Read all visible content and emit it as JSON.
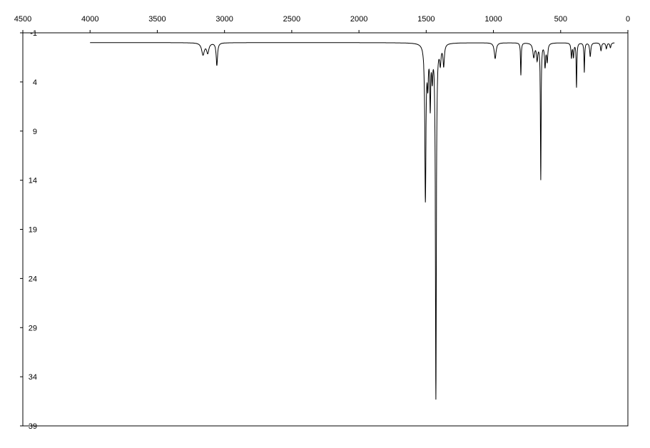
{
  "chart_data": {
    "type": "line",
    "title": "",
    "xlabel": "",
    "ylabel": "",
    "xlim": [
      4500,
      0
    ],
    "ylim": [
      -1,
      39
    ],
    "x_reversed": true,
    "y_inverted": true,
    "grid": false,
    "legend": "none",
    "line_color": "#000000",
    "x_ticks": [
      "4500",
      "4000",
      "3500",
      "3000",
      "2500",
      "2000",
      "1500",
      "1000",
      "500",
      "0"
    ],
    "y_ticks": [
      "-1",
      "4",
      "9",
      "14",
      "19",
      "24",
      "29",
      "34",
      "39"
    ],
    "x_range": [
      4000,
      100
    ],
    "baseline": 0,
    "peaks": [
      {
        "x": 3160,
        "y": 1.2,
        "w": 12
      },
      {
        "x": 3125,
        "y": 1.0,
        "w": 10
      },
      {
        "x": 3057,
        "y": 2.3,
        "w": 6
      },
      {
        "x": 1506,
        "y": 15.8,
        "w": 5
      },
      {
        "x": 1488,
        "y": 3.5,
        "w": 5
      },
      {
        "x": 1470,
        "y": 6.0,
        "w": 4
      },
      {
        "x": 1455,
        "y": 3.0,
        "w": 5
      },
      {
        "x": 1428,
        "y": 36.0,
        "w": 4
      },
      {
        "x": 1395,
        "y": 1.8,
        "w": 6
      },
      {
        "x": 1370,
        "y": 2.2,
        "w": 6
      },
      {
        "x": 987,
        "y": 1.6,
        "w": 8
      },
      {
        "x": 796,
        "y": 3.3,
        "w": 3
      },
      {
        "x": 700,
        "y": 1.4,
        "w": 8
      },
      {
        "x": 675,
        "y": 1.6,
        "w": 6
      },
      {
        "x": 648,
        "y": 13.8,
        "w": 3
      },
      {
        "x": 616,
        "y": 2.3,
        "w": 5
      },
      {
        "x": 600,
        "y": 1.8,
        "w": 5
      },
      {
        "x": 420,
        "y": 1.5,
        "w": 4
      },
      {
        "x": 405,
        "y": 1.4,
        "w": 4
      },
      {
        "x": 382,
        "y": 4.5,
        "w": 3
      },
      {
        "x": 324,
        "y": 3.0,
        "w": 3
      },
      {
        "x": 280,
        "y": 1.4,
        "w": 5
      },
      {
        "x": 200,
        "y": 0.8,
        "w": 5
      },
      {
        "x": 160,
        "y": 0.6,
        "w": 5
      },
      {
        "x": 130,
        "y": 0.5,
        "w": 5
      }
    ]
  }
}
